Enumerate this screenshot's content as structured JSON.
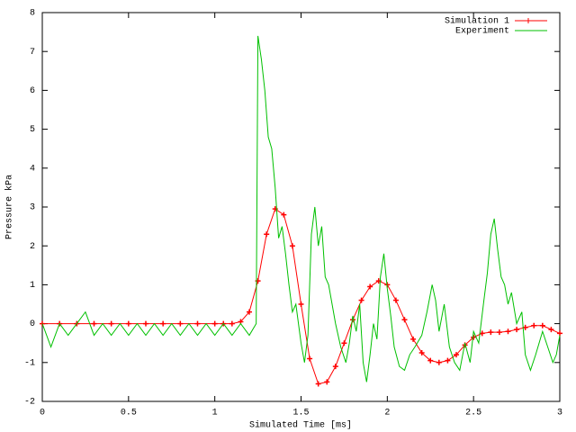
{
  "chart_data": {
    "type": "line",
    "xlabel": "Simulated Time [ms]",
    "ylabel": "Pressure kPa",
    "xlim": [
      0,
      3
    ],
    "ylim": [
      -2,
      8
    ],
    "xticks": [
      0,
      0.5,
      1,
      1.5,
      2,
      2.5,
      3
    ],
    "yticks": [
      -2,
      -1,
      0,
      1,
      2,
      3,
      4,
      5,
      6,
      7,
      8
    ],
    "legend": "top-right",
    "series": [
      {
        "name": "Simulation 1",
        "color": "#ff0000",
        "marker": "+",
        "x": [
          0,
          0.1,
          0.2,
          0.3,
          0.4,
          0.5,
          0.6,
          0.7,
          0.8,
          0.9,
          1.0,
          1.05,
          1.1,
          1.15,
          1.2,
          1.25,
          1.3,
          1.35,
          1.4,
          1.45,
          1.5,
          1.55,
          1.6,
          1.65,
          1.7,
          1.75,
          1.8,
          1.85,
          1.9,
          1.95,
          2.0,
          2.05,
          2.1,
          2.15,
          2.2,
          2.25,
          2.3,
          2.35,
          2.4,
          2.45,
          2.5,
          2.55,
          2.6,
          2.65,
          2.7,
          2.75,
          2.8,
          2.85,
          2.9,
          2.95,
          3.0
        ],
        "values": [
          0,
          0,
          0,
          0,
          0,
          0,
          0,
          0,
          0,
          0,
          0,
          0,
          0,
          0.05,
          0.3,
          1.1,
          2.3,
          2.95,
          2.8,
          2.0,
          0.5,
          -0.9,
          -1.55,
          -1.5,
          -1.1,
          -0.5,
          0.1,
          0.6,
          0.95,
          1.1,
          1.0,
          0.6,
          0.1,
          -0.4,
          -0.75,
          -0.95,
          -1.0,
          -0.95,
          -0.8,
          -0.55,
          -0.35,
          -0.25,
          -0.22,
          -0.22,
          -0.2,
          -0.15,
          -0.1,
          -0.05,
          -0.05,
          -0.15,
          -0.25
        ]
      },
      {
        "name": "Experiment",
        "color": "#00c000",
        "x": [
          0,
          0.05,
          0.1,
          0.15,
          0.2,
          0.25,
          0.3,
          0.35,
          0.4,
          0.45,
          0.5,
          0.55,
          0.6,
          0.65,
          0.7,
          0.75,
          0.8,
          0.85,
          0.9,
          0.95,
          1,
          1.05,
          1.1,
          1.15,
          1.2,
          1.24,
          1.25,
          1.27,
          1.29,
          1.31,
          1.33,
          1.35,
          1.37,
          1.39,
          1.41,
          1.43,
          1.45,
          1.47,
          1.5,
          1.52,
          1.54,
          1.56,
          1.58,
          1.6,
          1.62,
          1.64,
          1.66,
          1.7,
          1.73,
          1.76,
          1.78,
          1.8,
          1.82,
          1.84,
          1.86,
          1.88,
          1.9,
          1.92,
          1.94,
          1.96,
          1.98,
          2.0,
          2.02,
          2.04,
          2.07,
          2.1,
          2.13,
          2.16,
          2.2,
          2.23,
          2.26,
          2.28,
          2.3,
          2.33,
          2.36,
          2.39,
          2.42,
          2.45,
          2.48,
          2.5,
          2.53,
          2.56,
          2.58,
          2.6,
          2.62,
          2.64,
          2.66,
          2.68,
          2.7,
          2.72,
          2.75,
          2.78,
          2.8,
          2.83,
          2.86,
          2.9,
          2.93,
          2.96,
          2.98,
          3.0
        ],
        "values": [
          0,
          -0.6,
          0,
          -0.3,
          0,
          0.3,
          -0.3,
          0,
          -0.3,
          0,
          -0.3,
          0,
          -0.3,
          0,
          -0.3,
          0,
          -0.3,
          0,
          -0.3,
          0,
          -0.3,
          0,
          -0.3,
          0,
          -0.3,
          0,
          7.4,
          6.8,
          6.0,
          4.8,
          4.5,
          3.5,
          2.2,
          2.5,
          1.8,
          1.0,
          0.3,
          0.5,
          -0.5,
          -1.0,
          -0.3,
          2.3,
          3.0,
          2.0,
          2.5,
          1.2,
          1.0,
          0,
          -0.6,
          -1.0,
          -0.5,
          0.2,
          -0.2,
          0.5,
          -1.0,
          -1.5,
          -0.8,
          0,
          -0.4,
          1.2,
          1.8,
          0.9,
          0.2,
          -0.6,
          -1.1,
          -1.2,
          -0.8,
          -0.6,
          -0.3,
          0.3,
          1.0,
          0.6,
          -0.2,
          0.5,
          -0.6,
          -1.0,
          -1.2,
          -0.5,
          -1.0,
          -0.2,
          -0.5,
          0.6,
          1.3,
          2.3,
          2.7,
          1.9,
          1.2,
          1.0,
          0.5,
          0.8,
          0.0,
          0.3,
          -0.8,
          -1.2,
          -0.8,
          -0.2,
          -0.6,
          -1.0,
          -0.8,
          -0.3
        ]
      }
    ]
  }
}
